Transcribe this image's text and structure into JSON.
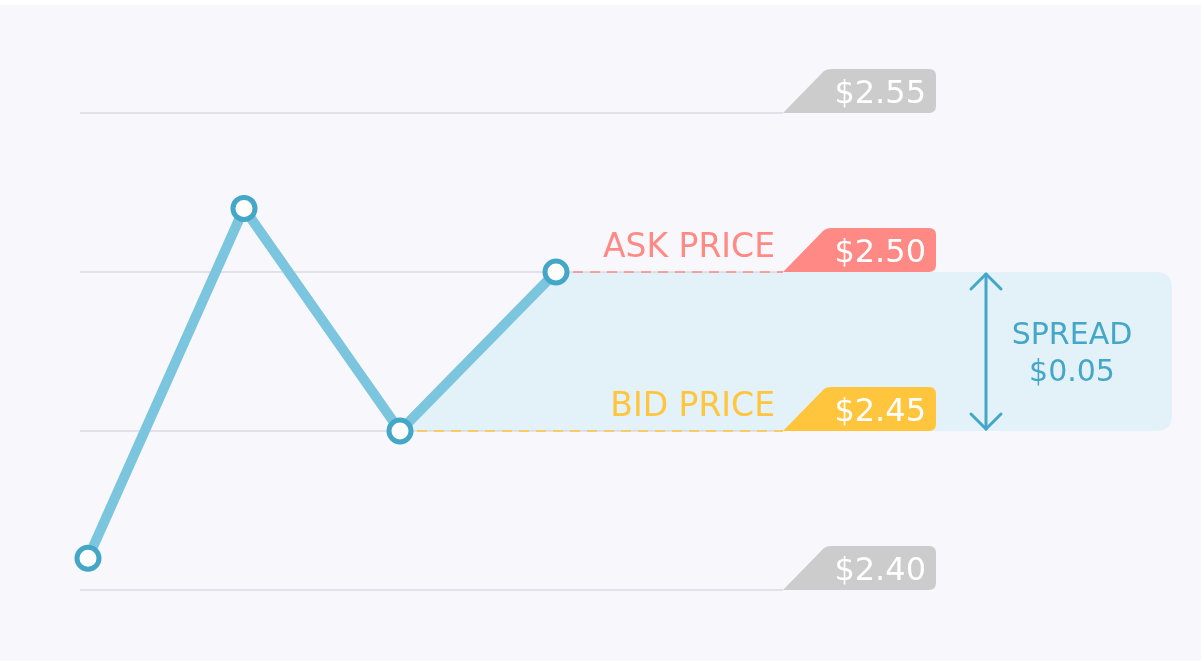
{
  "chart_data": {
    "type": "line",
    "categories": [
      null,
      null,
      null,
      null
    ],
    "series": [
      {
        "color": "#7bc6de",
        "values": [
          2.41,
          2.52,
          2.45,
          2.5
        ]
      }
    ],
    "ylim": [
      2.4,
      2.55
    ],
    "yticks": [
      {
        "value": 2.4,
        "label": "$2.40"
      },
      {
        "value": 2.45,
        "label": "$2.45"
      },
      {
        "value": 2.5,
        "label": "$2.50"
      },
      {
        "value": 2.55,
        "label": "$2.55"
      }
    ],
    "tick_labels": "y",
    "grid": "y",
    "marker": "circle",
    "line_style": "solid",
    "ref_lines": [
      {
        "axis": "y",
        "value": 2.5,
        "label": "ASK PRICE",
        "color": "#ff8a85",
        "line_style": "dashed"
      },
      {
        "axis": "y",
        "value": 2.45,
        "label": "BID PRICE",
        "color": "#ffc53d",
        "line_style": "dashed"
      }
    ],
    "bands": [
      {
        "axis": "y",
        "from": 2.45,
        "to": 2.5,
        "label": "SPREAD $0.05",
        "color": "#e3f1f9"
      }
    ]
  }
}
